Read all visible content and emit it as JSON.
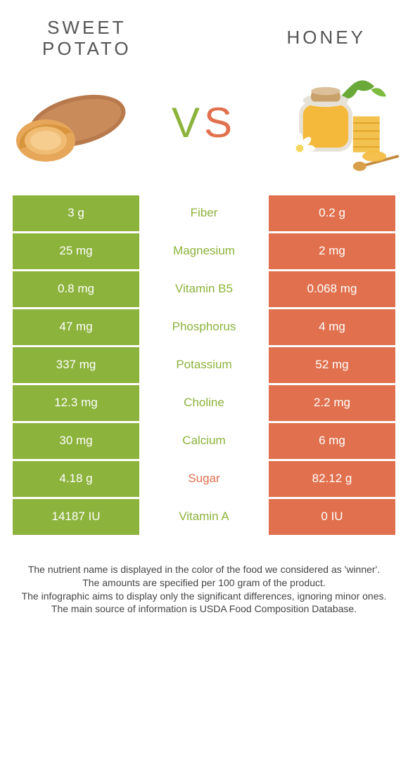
{
  "colors": {
    "left": "#8cb33c",
    "right": "#e1714e",
    "vs_left": "#8cb33c",
    "vs_right": "#e1714e",
    "text": "#444444",
    "white": "#ffffff"
  },
  "header": {
    "left_title_line1": "Sweet",
    "left_title_line2": "Potato",
    "right_title": "Honey"
  },
  "vs_label": "VS",
  "rows": [
    {
      "left": "3 g",
      "name": "Fiber",
      "right": "0.2 g",
      "winner": "left"
    },
    {
      "left": "25 mg",
      "name": "Magnesium",
      "right": "2 mg",
      "winner": "left"
    },
    {
      "left": "0.8 mg",
      "name": "Vitamin B5",
      "right": "0.068 mg",
      "winner": "left"
    },
    {
      "left": "47 mg",
      "name": "Phosphorus",
      "right": "4 mg",
      "winner": "left"
    },
    {
      "left": "337 mg",
      "name": "Potassium",
      "right": "52 mg",
      "winner": "left"
    },
    {
      "left": "12.3 mg",
      "name": "Choline",
      "right": "2.2 mg",
      "winner": "left"
    },
    {
      "left": "30 mg",
      "name": "Calcium",
      "right": "6 mg",
      "winner": "left"
    },
    {
      "left": "4.18 g",
      "name": "Sugar",
      "right": "82.12 g",
      "winner": "right"
    },
    {
      "left": "14187 IU",
      "name": "Vitamin A",
      "right": "0 IU",
      "winner": "left"
    }
  ],
  "footnotes": [
    "The nutrient name is displayed in the color of the food we considered as 'winner'.",
    "The amounts are specified per 100 gram of the product.",
    "The infographic aims to display only the significant differences, ignoring minor ones.",
    "The main source of information is USDA Food Composition Database."
  ]
}
